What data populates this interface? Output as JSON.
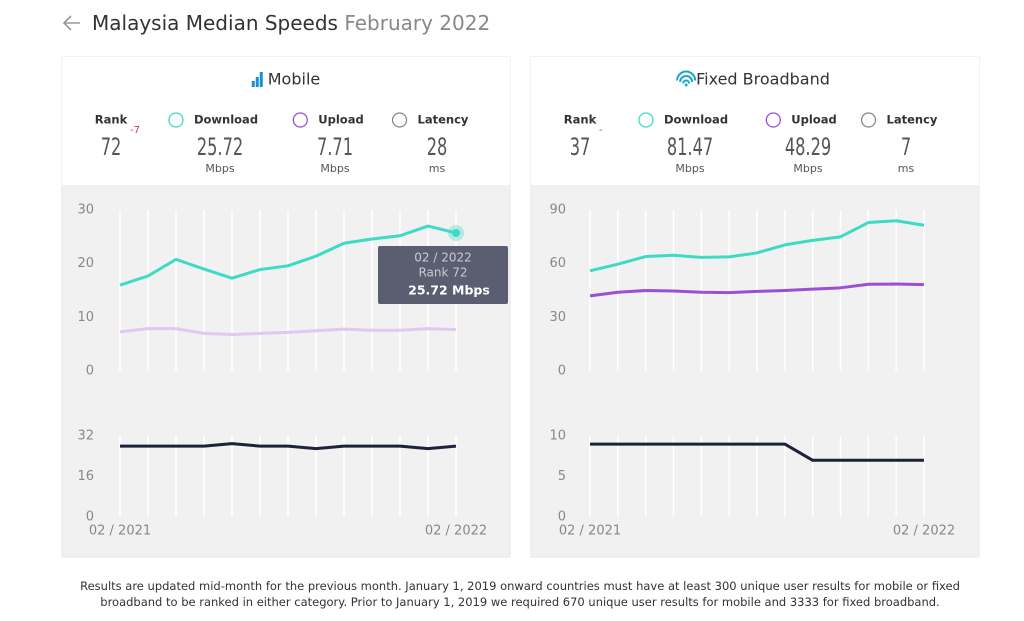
{
  "header": {
    "title": "Malaysia Median Speeds",
    "period": "February 2022"
  },
  "panels": [
    {
      "title": "Mobile",
      "stats": [
        {
          "label": "Rank",
          "value": 72,
          "change": -7
        },
        {
          "label": "Download",
          "value": 25.72,
          "unit": "Mbps"
        },
        {
          "label": "Upload",
          "value": 7.71,
          "unit": "Mbps"
        },
        {
          "label": "Latency",
          "value": 28,
          "unit": "ms"
        }
      ]
    },
    {
      "title": "Fixed Broadband",
      "stats": [
        {
          "label": "Rank",
          "value": 37,
          "change": "-"
        },
        {
          "label": "Download",
          "value": 81.47,
          "unit": "Mbps"
        },
        {
          "label": "Upload",
          "value": 48.29,
          "unit": "Mbps"
        },
        {
          "label": "Latency",
          "value": 7,
          "unit": "ms"
        }
      ]
    }
  ],
  "chart_data": [
    {
      "type": "line",
      "grid": true,
      "ylim": [
        0,
        30
      ],
      "yticks": [
        0,
        10,
        20,
        30
      ],
      "series": [
        {
          "color": "#3ddbc4",
          "values": [
            16,
            17.7,
            20.8,
            19,
            17.3,
            18.9,
            19.6,
            21.4,
            23.8,
            24.6,
            25.2,
            27,
            25.72
          ]
        },
        {
          "color": "#e1c8ef",
          "values": [
            7.3,
            7.9,
            7.9,
            7,
            6.8,
            7,
            7.2,
            7.5,
            7.8,
            7.6,
            7.6,
            7.9,
            7.71
          ]
        }
      ],
      "tooltip": {
        "period": "02 / 2022",
        "rank": "Rank 72",
        "value": "25.72 Mbps"
      }
    },
    {
      "type": "line",
      "grid": true,
      "ylim": [
        0,
        32
      ],
      "yticks": [
        0,
        16,
        32
      ],
      "categories": [
        "02 / 2021",
        null,
        null,
        null,
        null,
        null,
        null,
        null,
        null,
        null,
        null,
        null,
        "02 / 2022"
      ],
      "series": [
        {
          "color": "#1c2238",
          "values": [
            28,
            28,
            28,
            28,
            29,
            28,
            28,
            27,
            28,
            28,
            28,
            27,
            28
          ]
        }
      ]
    },
    {
      "type": "line",
      "grid": true,
      "ylim": [
        0,
        90
      ],
      "yticks": [
        0,
        30,
        60,
        90
      ],
      "series": [
        {
          "color": "#3ddbc4",
          "values": [
            56,
            59.7,
            64,
            64.7,
            63.5,
            63.8,
            66,
            70.5,
            73,
            75,
            83,
            84,
            81.47
          ]
        },
        {
          "color": "#9b4fd6",
          "values": [
            42,
            44,
            45,
            44.7,
            44,
            43.8,
            44.5,
            45,
            45.8,
            46.5,
            48.5,
            48.6,
            48.29
          ]
        }
      ]
    },
    {
      "type": "line",
      "grid": true,
      "ylim": [
        0,
        10
      ],
      "yticks": [
        0,
        5,
        10
      ],
      "categories": [
        "02 / 2021",
        null,
        null,
        null,
        null,
        null,
        null,
        null,
        null,
        null,
        null,
        null,
        "02 / 2022"
      ],
      "series": [
        {
          "color": "#1c2238",
          "values": [
            9,
            9,
            9,
            9,
            9,
            9,
            9,
            9,
            7,
            7,
            7,
            7,
            7
          ]
        }
      ]
    }
  ],
  "footer": "Results are updated mid-month for the previous month. January 1, 2019 onward countries must have at least 300 unique user results for mobile or fixed broadband to be ranked in either category. Prior to January 1, 2019 we required 670 unique user results for mobile and 3333 for fixed broadband."
}
